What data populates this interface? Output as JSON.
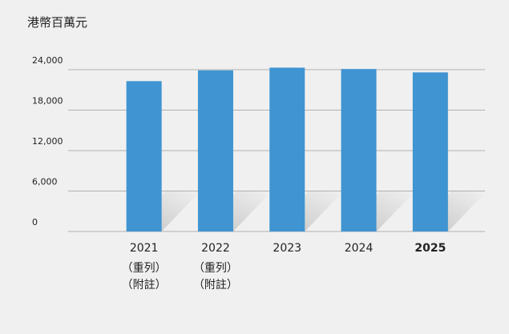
{
  "chart_data": {
    "type": "bar",
    "title": "港幣百萬元",
    "categories": [
      "2021",
      "2022",
      "2023",
      "2024",
      "2025"
    ],
    "category_notes": [
      [
        "（重列）",
        "（附註）"
      ],
      [
        "（重列）",
        "（附註）"
      ],
      [],
      [],
      []
    ],
    "highlight": [
      false,
      false,
      false,
      false,
      true
    ],
    "values": [
      22300,
      23900,
      24300,
      24100,
      23600
    ],
    "color": "#3f94d1",
    "ylim": [
      0,
      24000
    ],
    "yticks": [
      0,
      {
        "value": 6000,
        "label": "6,000"
      },
      {
        "value": 12000,
        "label": "12,000"
      },
      {
        "value": 18000,
        "label": "18,000"
      },
      {
        "value": 24000,
        "label": "24,000"
      }
    ],
    "grid": true
  }
}
